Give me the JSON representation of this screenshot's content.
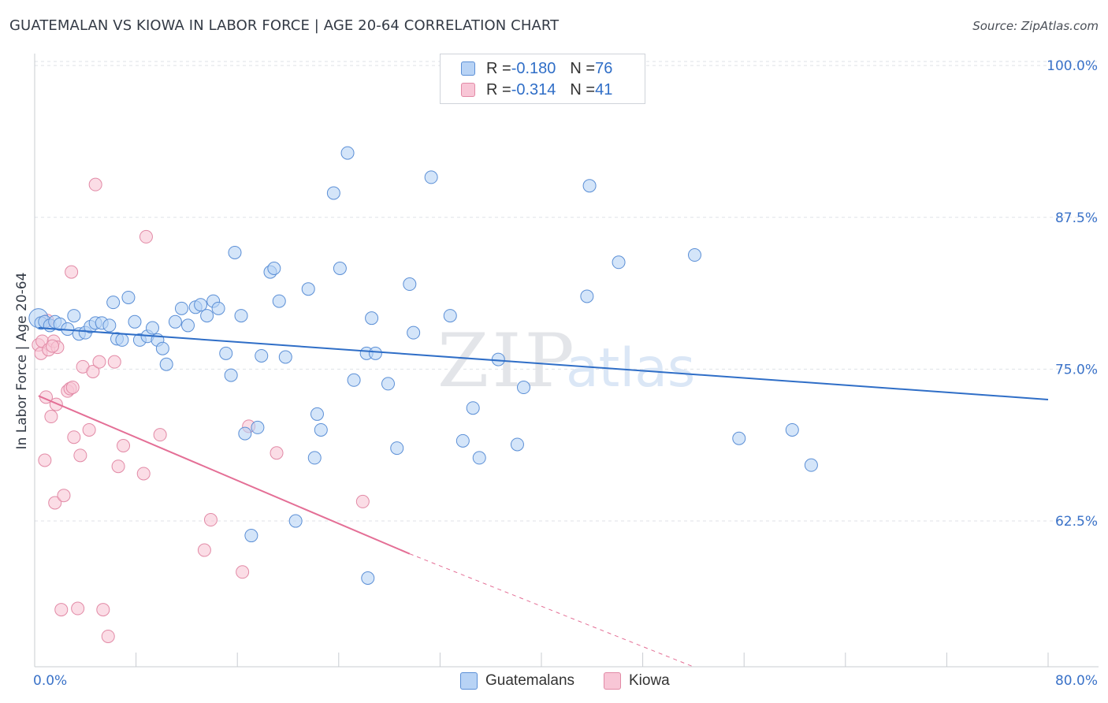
{
  "header": {
    "title": "GUATEMALAN VS KIOWA IN LABOR FORCE | AGE 20-64 CORRELATION CHART",
    "source": "Source: ZipAtlas.com"
  },
  "legend": {
    "rows": [
      {
        "r_label": "R = ",
        "r_value": "-0.180",
        "n_label": "N = ",
        "n_value": "76"
      },
      {
        "r_label": "R = ",
        "r_value": "-0.314",
        "n_label": "N = ",
        "n_value": "41"
      }
    ]
  },
  "bottom_legend": [
    "Guatemalans",
    "Kiowa"
  ],
  "colors": {
    "blue_fill": "#b8d3f5",
    "blue_stroke": "#5b8fd6",
    "blue_line": "#2f6ec7",
    "pink_fill": "#f8c6d6",
    "pink_stroke": "#e28aa6",
    "pink_line": "#e46f96",
    "grid": "#dfe2e7",
    "axis_label": "#3a72c8"
  },
  "chart_data": {
    "type": "scatter",
    "ylabel": "In Labor Force | Age 20-64",
    "xlim": [
      0,
      80
    ],
    "ylim": [
      50.5,
      101.5
    ],
    "x_tick_labels": [
      {
        "x": 0,
        "label": "0.0%"
      },
      {
        "x": 80,
        "label": "80.0%"
      }
    ],
    "y_tick_labels": [
      {
        "y": 100,
        "label": "100.0%"
      },
      {
        "y": 87.5,
        "label": "87.5%"
      },
      {
        "y": 75,
        "label": "75.0%"
      },
      {
        "y": 62.5,
        "label": "62.5%"
      }
    ],
    "grid": "horizontal dashed",
    "watermark": "ZIPatlas",
    "series": [
      {
        "name": "Guatemalans",
        "points": [
          [
            0.3,
            79.2
          ],
          [
            0.5,
            78.8
          ],
          [
            0.8,
            78.9
          ],
          [
            1.2,
            78.6
          ],
          [
            1.6,
            78.9
          ],
          [
            2.0,
            78.7
          ],
          [
            2.6,
            78.3
          ],
          [
            3.1,
            79.4
          ],
          [
            3.5,
            77.9
          ],
          [
            4.0,
            78.0
          ],
          [
            4.4,
            78.5
          ],
          [
            4.8,
            78.8
          ],
          [
            5.3,
            78.8
          ],
          [
            5.9,
            78.6
          ],
          [
            6.2,
            80.5
          ],
          [
            6.5,
            77.5
          ],
          [
            6.9,
            77.4
          ],
          [
            7.4,
            80.9
          ],
          [
            7.9,
            78.9
          ],
          [
            8.3,
            77.4
          ],
          [
            8.9,
            77.7
          ],
          [
            9.3,
            78.4
          ],
          [
            9.7,
            77.4
          ],
          [
            10.1,
            76.7
          ],
          [
            10.4,
            75.4
          ],
          [
            11.1,
            78.9
          ],
          [
            11.6,
            80.0
          ],
          [
            12.1,
            78.6
          ],
          [
            12.7,
            80.1
          ],
          [
            13.1,
            80.3
          ],
          [
            13.6,
            79.4
          ],
          [
            14.1,
            80.6
          ],
          [
            14.5,
            80.0
          ],
          [
            15.1,
            76.3
          ],
          [
            15.5,
            74.5
          ],
          [
            15.8,
            84.6
          ],
          [
            16.3,
            79.4
          ],
          [
            16.6,
            69.7
          ],
          [
            17.1,
            61.3
          ],
          [
            17.6,
            70.2
          ],
          [
            17.9,
            76.1
          ],
          [
            18.6,
            83.0
          ],
          [
            18.9,
            83.3
          ],
          [
            19.3,
            80.6
          ],
          [
            19.8,
            76.0
          ],
          [
            20.6,
            62.5
          ],
          [
            21.6,
            81.6
          ],
          [
            22.1,
            67.7
          ],
          [
            22.3,
            71.3
          ],
          [
            22.6,
            70.0
          ],
          [
            23.6,
            89.5
          ],
          [
            24.1,
            83.3
          ],
          [
            24.7,
            92.8
          ],
          [
            25.2,
            74.1
          ],
          [
            26.2,
            76.3
          ],
          [
            26.3,
            57.8
          ],
          [
            26.6,
            79.2
          ],
          [
            26.9,
            76.3
          ],
          [
            27.9,
            73.8
          ],
          [
            28.6,
            68.5
          ],
          [
            29.9,
            78.0
          ],
          [
            29.6,
            82.0
          ],
          [
            31.3,
            90.8
          ],
          [
            32.8,
            79.4
          ],
          [
            33.8,
            69.1
          ],
          [
            34.6,
            71.8
          ],
          [
            35.1,
            67.7
          ],
          [
            36.6,
            75.8
          ],
          [
            38.1,
            68.8
          ],
          [
            38.6,
            73.5
          ],
          [
            43.6,
            81.0
          ],
          [
            43.8,
            90.1
          ],
          [
            46.1,
            83.8
          ],
          [
            52.1,
            84.4
          ],
          [
            55.6,
            69.3
          ],
          [
            59.8,
            70.0
          ],
          [
            61.3,
            67.1
          ]
        ],
        "trend": {
          "x0": 0.3,
          "y0": 78.4,
          "x1": 80.0,
          "y1": 72.5
        }
      },
      {
        "name": "Kiowa",
        "points": [
          [
            0.3,
            77.0
          ],
          [
            0.5,
            76.3
          ],
          [
            0.6,
            77.3
          ],
          [
            0.8,
            67.5
          ],
          [
            0.9,
            72.7
          ],
          [
            1.0,
            79.0
          ],
          [
            1.1,
            76.6
          ],
          [
            1.3,
            71.1
          ],
          [
            1.5,
            77.3
          ],
          [
            1.6,
            64.0
          ],
          [
            1.7,
            72.1
          ],
          [
            1.8,
            76.8
          ],
          [
            2.1,
            55.2
          ],
          [
            2.3,
            64.6
          ],
          [
            2.6,
            73.2
          ],
          [
            2.8,
            73.4
          ],
          [
            2.9,
            83.0
          ],
          [
            3.1,
            69.4
          ],
          [
            3.4,
            55.3
          ],
          [
            3.6,
            67.9
          ],
          [
            3.8,
            75.2
          ],
          [
            4.3,
            70.0
          ],
          [
            4.6,
            74.8
          ],
          [
            4.8,
            90.2
          ],
          [
            5.1,
            75.6
          ],
          [
            5.4,
            55.2
          ],
          [
            5.8,
            53.0
          ],
          [
            6.3,
            75.6
          ],
          [
            6.6,
            67.0
          ],
          [
            7.0,
            68.7
          ],
          [
            8.6,
            66.4
          ],
          [
            8.8,
            85.9
          ],
          [
            9.9,
            69.6
          ],
          [
            13.4,
            60.1
          ],
          [
            13.9,
            62.6
          ],
          [
            16.4,
            58.3
          ],
          [
            16.9,
            70.3
          ],
          [
            19.1,
            68.1
          ],
          [
            25.9,
            64.1
          ],
          [
            3.0,
            73.5
          ],
          [
            1.4,
            76.9
          ]
        ],
        "trend": {
          "x0": 0.3,
          "y0": 72.8,
          "x1": 29.6,
          "y1": 59.8
        },
        "trend_dashed": {
          "x0": 29.6,
          "y0": 59.8,
          "x1": 52.0,
          "y1": 50.5
        }
      }
    ]
  }
}
